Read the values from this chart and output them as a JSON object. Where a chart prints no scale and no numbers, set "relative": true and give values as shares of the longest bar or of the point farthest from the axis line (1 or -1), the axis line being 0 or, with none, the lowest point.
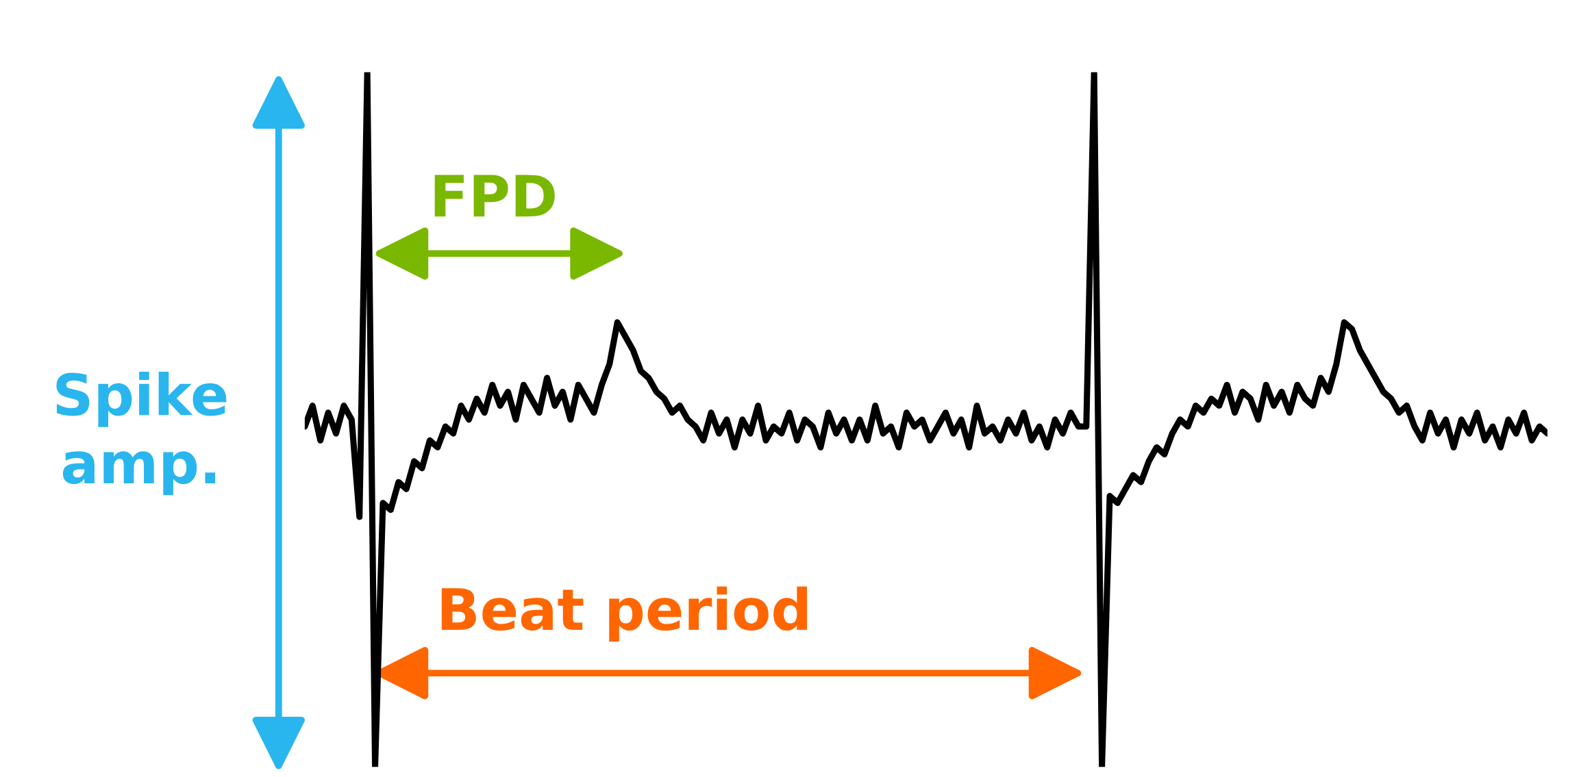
{
  "chart_data": {
    "type": "line",
    "relative": true,
    "categories": [
      null,
      null,
      null,
      null,
      null,
      null,
      null,
      null,
      null,
      null,
      null,
      null,
      null,
      null,
      null,
      null,
      null,
      null,
      null,
      null,
      null,
      null,
      null,
      null,
      null,
      null,
      null,
      null,
      null,
      null,
      null,
      null,
      null,
      null,
      null,
      null,
      null,
      null,
      null,
      null,
      null,
      null,
      null,
      null,
      null,
      null,
      null,
      null,
      null,
      null,
      null,
      null,
      null,
      null,
      null,
      null,
      null,
      null,
      null,
      null,
      null,
      null,
      null,
      null,
      null,
      null,
      null,
      null,
      null,
      null,
      null,
      null,
      null,
      null,
      null,
      null,
      null,
      null,
      null,
      null,
      null,
      null,
      null,
      null,
      null,
      null,
      null,
      null,
      null,
      null,
      null,
      null,
      null,
      null,
      null,
      null,
      null,
      null,
      null,
      null,
      null,
      null,
      null,
      null,
      null,
      null,
      null,
      null,
      null,
      null,
      null,
      null,
      null,
      null,
      null,
      null,
      null,
      null,
      null,
      null,
      null,
      null,
      null,
      null,
      null,
      null,
      null,
      null,
      null,
      null,
      null,
      null,
      null,
      null,
      null,
      null,
      null,
      null,
      null,
      null,
      null,
      null,
      null,
      null,
      null,
      null,
      null,
      null,
      null,
      null,
      null,
      null,
      null,
      null,
      null,
      null,
      null,
      null,
      null,
      null
    ],
    "series": [
      {
        "color": "#000000",
        "values": [
          0.49,
          0.52,
          0.47,
          0.51,
          0.48,
          0.52,
          0.5,
          0.36,
          1.0,
          0.0,
          0.38,
          0.37,
          0.41,
          0.4,
          0.44,
          0.43,
          0.47,
          0.46,
          0.49,
          0.48,
          0.52,
          0.5,
          0.53,
          0.51,
          0.55,
          0.52,
          0.54,
          0.5,
          0.55,
          0.53,
          0.51,
          0.56,
          0.52,
          0.54,
          0.5,
          0.55,
          0.53,
          0.51,
          0.55,
          0.58,
          0.64,
          0.62,
          0.6,
          0.57,
          0.56,
          0.54,
          0.53,
          0.51,
          0.52,
          0.5,
          0.49,
          0.47,
          0.51,
          0.48,
          0.5,
          0.46,
          0.5,
          0.48,
          0.52,
          0.47,
          0.49,
          0.48,
          0.51,
          0.47,
          0.5,
          0.49,
          0.46,
          0.51,
          0.48,
          0.5,
          0.47,
          0.5,
          0.47,
          0.52,
          0.48,
          0.49,
          0.46,
          0.51,
          0.49,
          0.5,
          0.47,
          0.49,
          0.51,
          0.48,
          0.5,
          0.46,
          0.52,
          0.48,
          0.49,
          0.47,
          0.5,
          0.48,
          0.51,
          0.47,
          0.49,
          0.46,
          0.5,
          0.48,
          0.51,
          0.49,
          0.49,
          1.0,
          0.0,
          0.39,
          0.38,
          0.4,
          0.42,
          0.41,
          0.44,
          0.46,
          0.45,
          0.48,
          0.5,
          0.49,
          0.52,
          0.51,
          0.53,
          0.52,
          0.55,
          0.51,
          0.54,
          0.53,
          0.5,
          0.55,
          0.52,
          0.54,
          0.51,
          0.55,
          0.53,
          0.52,
          0.56,
          0.54,
          0.58,
          0.64,
          0.63,
          0.6,
          0.58,
          0.56,
          0.54,
          0.53,
          0.51,
          0.52,
          0.49,
          0.47,
          0.51,
          0.48,
          0.5,
          0.46,
          0.5,
          0.48,
          0.51,
          0.47,
          0.49,
          0.46,
          0.5,
          0.48,
          0.51,
          0.47,
          0.49,
          0.48
        ]
      }
    ],
    "annotations": [
      "Spike amp.",
      "FPD",
      "Beat period"
    ]
  }
}
